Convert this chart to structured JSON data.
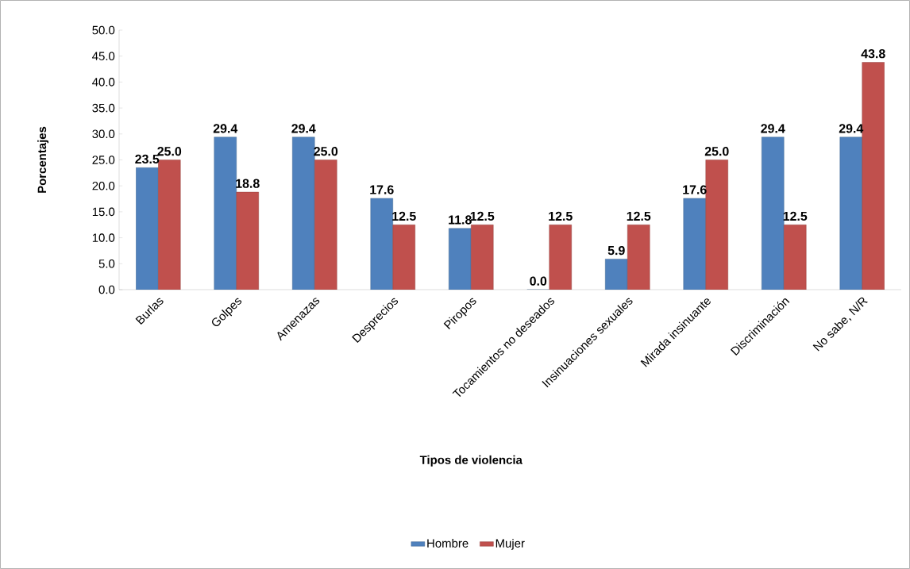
{
  "chart_data": {
    "type": "bar",
    "xlabel": "Tipos de violencia",
    "ylabel": "Porcentajes",
    "categories": [
      "Burlas",
      "Golpes",
      "Amenazas",
      "Desprecios",
      "Piropos",
      "Tocamientos no deseados",
      "Insinuaciones sexuales",
      "Mirada insinuante",
      "Discriminación",
      "No sabe, N/R"
    ],
    "series": [
      {
        "name": "Hombre",
        "color": "#4f81bd",
        "values": [
          23.5,
          29.4,
          29.4,
          17.6,
          11.8,
          0.0,
          5.9,
          17.6,
          29.4,
          29.4
        ],
        "value_labels": [
          "23.5",
          "29.4",
          "29.4",
          "17.6",
          "11.8",
          "0.0",
          "5.9",
          "17.6",
          "29.4",
          "29.4"
        ]
      },
      {
        "name": "Mujer",
        "color": "#c0504d",
        "values": [
          25.0,
          18.8,
          25.0,
          12.5,
          12.5,
          12.5,
          12.5,
          25.0,
          12.5,
          43.8
        ],
        "value_labels": [
          "25.0",
          "18.8",
          "25.0",
          "12.5",
          "12.5",
          "12.5",
          "12.5",
          "25.0",
          "12.5",
          "43.8"
        ]
      }
    ],
    "ylim": [
      0,
      50
    ],
    "yticks": [
      {
        "value": 0,
        "label": "0.0"
      },
      {
        "value": 5,
        "label": "5.0"
      },
      {
        "value": 10,
        "label": "10.0"
      },
      {
        "value": 15,
        "label": "15.0"
      },
      {
        "value": 20,
        "label": "20.0"
      },
      {
        "value": 25,
        "label": "25.0"
      },
      {
        "value": 30,
        "label": "30.0"
      },
      {
        "value": 35,
        "label": "35.0"
      },
      {
        "value": 40,
        "label": "40.0"
      },
      {
        "value": 45,
        "label": "45.0"
      },
      {
        "value": 50,
        "label": "50.0"
      }
    ],
    "grid": false,
    "legend": "bottom"
  }
}
